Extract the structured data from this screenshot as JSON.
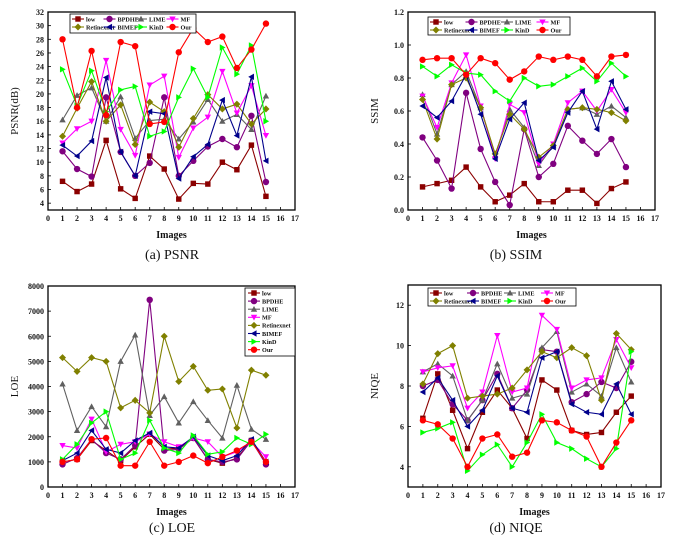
{
  "chart_data": [
    {
      "id": "psnr",
      "type": "line",
      "caption": "(a) PSNR",
      "title": "",
      "xlabel": "Images",
      "ylabel": "PSNR(dB)",
      "xlim": [
        0,
        17
      ],
      "ylim": [
        3,
        32
      ],
      "xticks": [
        0,
        1,
        2,
        3,
        4,
        5,
        6,
        7,
        8,
        9,
        10,
        11,
        12,
        13,
        14,
        15,
        16,
        17
      ],
      "yticks": [
        4,
        6,
        8,
        10,
        12,
        14,
        16,
        18,
        20,
        22,
        24,
        26,
        28,
        30,
        32
      ],
      "grid": false,
      "legend_position": "top-left (2 rows)",
      "x": [
        1,
        2,
        3,
        4,
        5,
        6,
        7,
        8,
        9,
        10,
        11,
        12,
        13,
        14,
        15
      ],
      "series": [
        {
          "name": "low",
          "color": "#8b0000",
          "marker": "square",
          "values": [
            7.2,
            5.7,
            6.8,
            13.2,
            6.1,
            4.7,
            10.9,
            9.0,
            4.6,
            6.9,
            6.8,
            10.0,
            8.9,
            12.5,
            5.0
          ]
        },
        {
          "name": "BPDHE",
          "color": "#800080",
          "marker": "circle",
          "values": [
            11.6,
            9.0,
            7.9,
            19.5,
            11.5,
            8.0,
            9.9,
            19.5,
            8.0,
            10.2,
            12.3,
            13.4,
            12.2,
            16.8,
            7.1
          ]
        },
        {
          "name": "LIME",
          "color": "#606060",
          "marker": "triangle-up",
          "values": [
            16.2,
            19.8,
            20.9,
            16.0,
            19.6,
            13.5,
            16.1,
            16.3,
            13.4,
            15.9,
            19.2,
            16.0,
            17.0,
            14.8,
            19.7
          ]
        },
        {
          "name": "MF",
          "color": "#ff00ff",
          "marker": "triangle-down",
          "values": [
            12.8,
            14.9,
            16.0,
            24.9,
            14.8,
            11.0,
            21.3,
            22.6,
            10.7,
            15.0,
            16.6,
            23.3,
            17.2,
            21.2,
            13.9
          ]
        },
        {
          "name": "Retinexnet",
          "color": "#808000",
          "marker": "diamond",
          "values": [
            13.8,
            17.9,
            21.8,
            16.0,
            18.4,
            12.6,
            18.8,
            17.4,
            12.2,
            16.4,
            19.9,
            17.8,
            18.5,
            15.6,
            17.8
          ]
        },
        {
          "name": "BIMEF",
          "color": "#00008b",
          "marker": "triangle-left",
          "values": [
            12.5,
            10.9,
            13.1,
            22.4,
            11.5,
            8.0,
            17.4,
            17.1,
            7.6,
            10.8,
            12.6,
            19.1,
            13.9,
            22.5,
            10.2
          ]
        },
        {
          "name": "KinD",
          "color": "#00ff00",
          "marker": "triangle-right",
          "values": [
            23.6,
            18.3,
            23.4,
            17.4,
            20.6,
            21.1,
            13.8,
            14.5,
            19.5,
            23.7,
            19.5,
            26.8,
            22.9,
            27.1,
            16.0
          ]
        },
        {
          "name": "Our",
          "color": "#ff0000",
          "marker": "circle",
          "values": [
            28.0,
            18.0,
            26.3,
            16.9,
            27.6,
            27.0,
            15.6,
            15.9,
            26.1,
            29.6,
            27.6,
            28.4,
            23.8,
            26.5,
            30.3
          ]
        }
      ]
    },
    {
      "id": "ssim",
      "type": "line",
      "caption": "(b) SSIM",
      "title": "",
      "xlabel": "Images",
      "ylabel": "SSIM",
      "xlim": [
        0,
        17
      ],
      "ylim": [
        0.0,
        1.2
      ],
      "xticks": [
        0,
        1,
        2,
        3,
        4,
        5,
        6,
        7,
        8,
        9,
        10,
        11,
        12,
        13,
        14,
        15,
        16,
        17
      ],
      "yticks": [
        0.0,
        0.2,
        0.4,
        0.6,
        0.8,
        1.0,
        1.2
      ],
      "ytick_format": "0.0",
      "grid": false,
      "legend_position": "top-left (2 rows)",
      "x": [
        1,
        2,
        3,
        4,
        5,
        6,
        7,
        8,
        9,
        10,
        11,
        12,
        13,
        14,
        15
      ],
      "series": [
        {
          "name": "low",
          "color": "#8b0000",
          "marker": "square",
          "values": [
            0.14,
            0.16,
            0.18,
            0.26,
            0.14,
            0.05,
            0.09,
            0.16,
            0.05,
            0.05,
            0.12,
            0.12,
            0.04,
            0.13,
            0.17
          ]
        },
        {
          "name": "BPDHE",
          "color": "#800080",
          "marker": "circle",
          "values": [
            0.44,
            0.3,
            0.13,
            0.71,
            0.37,
            0.17,
            0.03,
            0.49,
            0.2,
            0.28,
            0.51,
            0.42,
            0.34,
            0.43,
            0.26
          ]
        },
        {
          "name": "LIME",
          "color": "#606060",
          "marker": "triangle-up",
          "values": [
            0.7,
            0.46,
            0.76,
            0.84,
            0.62,
            0.33,
            0.61,
            0.5,
            0.27,
            0.39,
            0.61,
            0.62,
            0.58,
            0.63,
            0.56
          ]
        },
        {
          "name": "MF",
          "color": "#ff00ff",
          "marker": "triangle-down",
          "values": [
            0.69,
            0.5,
            0.77,
            0.94,
            0.63,
            0.31,
            0.64,
            0.59,
            0.28,
            0.4,
            0.65,
            0.72,
            0.6,
            0.73,
            0.59
          ]
        },
        {
          "name": "Retinexnet",
          "color": "#808000",
          "marker": "diamond",
          "values": [
            0.67,
            0.43,
            0.76,
            0.8,
            0.62,
            0.34,
            0.58,
            0.49,
            0.32,
            0.39,
            0.61,
            0.62,
            0.61,
            0.59,
            0.54
          ]
        },
        {
          "name": "BIMEF",
          "color": "#00008b",
          "marker": "triangle-left",
          "values": [
            0.63,
            0.56,
            0.66,
            0.82,
            0.58,
            0.31,
            0.55,
            0.65,
            0.3,
            0.38,
            0.59,
            0.72,
            0.49,
            0.78,
            0.61
          ]
        },
        {
          "name": "KinD",
          "color": "#00ff00",
          "marker": "triangle-right",
          "values": [
            0.87,
            0.81,
            0.88,
            0.83,
            0.82,
            0.72,
            0.66,
            0.8,
            0.75,
            0.76,
            0.81,
            0.86,
            0.78,
            0.89,
            0.81
          ]
        },
        {
          "name": "Our",
          "color": "#ff0000",
          "marker": "circle",
          "values": [
            0.91,
            0.92,
            0.92,
            0.82,
            0.92,
            0.89,
            0.79,
            0.84,
            0.93,
            0.91,
            0.93,
            0.91,
            0.81,
            0.93,
            0.94
          ]
        }
      ]
    },
    {
      "id": "loe",
      "type": "line",
      "caption": "(c) LOE",
      "title": "",
      "xlabel": "Images",
      "ylabel": "LOE",
      "xlim": [
        0,
        17
      ],
      "ylim": [
        0,
        8000
      ],
      "xticks": [
        0,
        1,
        2,
        3,
        4,
        5,
        6,
        7,
        8,
        9,
        10,
        11,
        12,
        13,
        14,
        15,
        16,
        17
      ],
      "yticks": [
        0,
        1000,
        2000,
        3000,
        4000,
        5000,
        6000,
        7000,
        8000
      ],
      "grid": false,
      "legend_position": "top-right (1 column)",
      "x": [
        1,
        2,
        3,
        4,
        5,
        6,
        7,
        8,
        9,
        10,
        11,
        12,
        13,
        14,
        15
      ],
      "series": [
        {
          "name": "low",
          "color": "#8b0000",
          "marker": "square",
          "values": [
            1000,
            1100,
            1850,
            1450,
            1050,
            1600,
            2100,
            1500,
            1550,
            1950,
            1100,
            950,
            1150,
            1850,
            950
          ]
        },
        {
          "name": "BPDHE",
          "color": "#800080",
          "marker": "circle",
          "values": [
            900,
            1150,
            1900,
            1350,
            1100,
            1650,
            7450,
            1450,
            1500,
            1950,
            1100,
            1000,
            1100,
            1850,
            900
          ]
        },
        {
          "name": "LIME",
          "color": "#606060",
          "marker": "triangle-up",
          "values": [
            4100,
            2250,
            3200,
            2400,
            5000,
            6050,
            2850,
            3600,
            2550,
            3400,
            2650,
            1950,
            4050,
            2300,
            1900
          ]
        },
        {
          "name": "MF",
          "color": "#ff00ff",
          "marker": "triangle-down",
          "values": [
            1650,
            1550,
            2700,
            1400,
            1700,
            1800,
            2100,
            1800,
            1600,
            1950,
            1800,
            1200,
            1400,
            1800,
            1200
          ]
        },
        {
          "name": "Retinexnet",
          "color": "#808000",
          "marker": "diamond",
          "values": [
            5150,
            4600,
            5150,
            5000,
            3150,
            3450,
            2950,
            6000,
            4200,
            4800,
            3850,
            3900,
            2350,
            4650,
            4450
          ]
        },
        {
          "name": "BIMEF",
          "color": "#00008b",
          "marker": "triangle-left",
          "values": [
            1050,
            1350,
            2250,
            1500,
            1350,
            1850,
            2150,
            1600,
            1550,
            2000,
            1250,
            1050,
            1250,
            1900,
            1000
          ]
        },
        {
          "name": "KinD",
          "color": "#00ff00",
          "marker": "triangle-right",
          "values": [
            1100,
            1700,
            2550,
            3000,
            1100,
            1350,
            2650,
            1550,
            1350,
            2050,
            1300,
            1400,
            1950,
            1700,
            2100
          ]
        },
        {
          "name": "Our",
          "color": "#ff0000",
          "marker": "circle",
          "values": [
            1000,
            1100,
            1900,
            1950,
            850,
            850,
            1800,
            850,
            1000,
            1250,
            950,
            1200,
            1450,
            1800,
            1000
          ]
        }
      ]
    },
    {
      "id": "niqe",
      "type": "line",
      "caption": "(d) NIQE",
      "title": "",
      "xlabel": "Images",
      "ylabel": "NIQE",
      "xlim": [
        0,
        17
      ],
      "ylim": [
        3,
        13
      ],
      "xticks": [
        0,
        1,
        2,
        3,
        4,
        5,
        6,
        7,
        8,
        9,
        10,
        11,
        12,
        13,
        14,
        15,
        16,
        17
      ],
      "yticks": [
        4,
        6,
        8,
        10,
        12
      ],
      "grid": false,
      "legend_position": "top-left (2 rows)",
      "x": [
        1,
        2,
        3,
        4,
        5,
        6,
        7,
        8,
        9,
        10,
        11,
        12,
        13,
        14,
        15
      ],
      "series": [
        {
          "name": "low",
          "color": "#8b0000",
          "marker": "square",
          "values": [
            6.4,
            8.6,
            6.8,
            4.9,
            6.7,
            7.8,
            6.9,
            5.4,
            8.3,
            7.8,
            5.8,
            5.6,
            5.7,
            6.7,
            7.5
          ]
        },
        {
          "name": "BPDHE",
          "color": "#800080",
          "marker": "circle",
          "values": [
            8.0,
            8.3,
            7.1,
            6.3,
            7.3,
            8.6,
            6.9,
            7.8,
            9.8,
            9.7,
            7.2,
            7.6,
            8.2,
            7.9,
            9.2
          ]
        },
        {
          "name": "LIME",
          "color": "#606060",
          "marker": "triangle-up",
          "values": [
            8.7,
            9.1,
            8.5,
            6.3,
            7.3,
            9.1,
            7.4,
            7.6,
            9.9,
            10.7,
            7.7,
            8.1,
            7.5,
            9.9,
            8.2
          ]
        },
        {
          "name": "MF",
          "color": "#ff00ff",
          "marker": "triangle-down",
          "values": [
            8.7,
            8.9,
            9.0,
            6.9,
            7.7,
            10.5,
            7.7,
            7.9,
            11.5,
            10.8,
            7.9,
            8.3,
            8.4,
            10.3,
            8.9
          ]
        },
        {
          "name": "Retinexnet",
          "color": "#808000",
          "marker": "diamond",
          "values": [
            8.1,
            9.6,
            10.0,
            7.4,
            7.5,
            7.6,
            7.9,
            8.8,
            9.7,
            9.4,
            9.9,
            9.5,
            7.3,
            10.6,
            9.8
          ]
        },
        {
          "name": "BIMEF",
          "color": "#00008b",
          "marker": "triangle-left",
          "values": [
            7.7,
            8.4,
            7.3,
            6.0,
            6.8,
            8.5,
            6.9,
            6.7,
            9.4,
            9.7,
            7.1,
            6.7,
            6.6,
            8.1,
            6.6
          ]
        },
        {
          "name": "KinD",
          "color": "#00ff00",
          "marker": "triangle-right",
          "values": [
            5.7,
            5.9,
            6.2,
            3.8,
            4.6,
            5.1,
            4.0,
            5.2,
            6.6,
            5.2,
            4.9,
            4.4,
            4.0,
            4.9,
            9.7
          ]
        },
        {
          "name": "Our",
          "color": "#ff0000",
          "marker": "circle",
          "values": [
            6.3,
            6.1,
            5.4,
            4.0,
            5.4,
            5.6,
            4.5,
            4.7,
            6.3,
            6.2,
            5.8,
            5.5,
            4.0,
            5.2,
            6.3
          ]
        }
      ]
    }
  ]
}
